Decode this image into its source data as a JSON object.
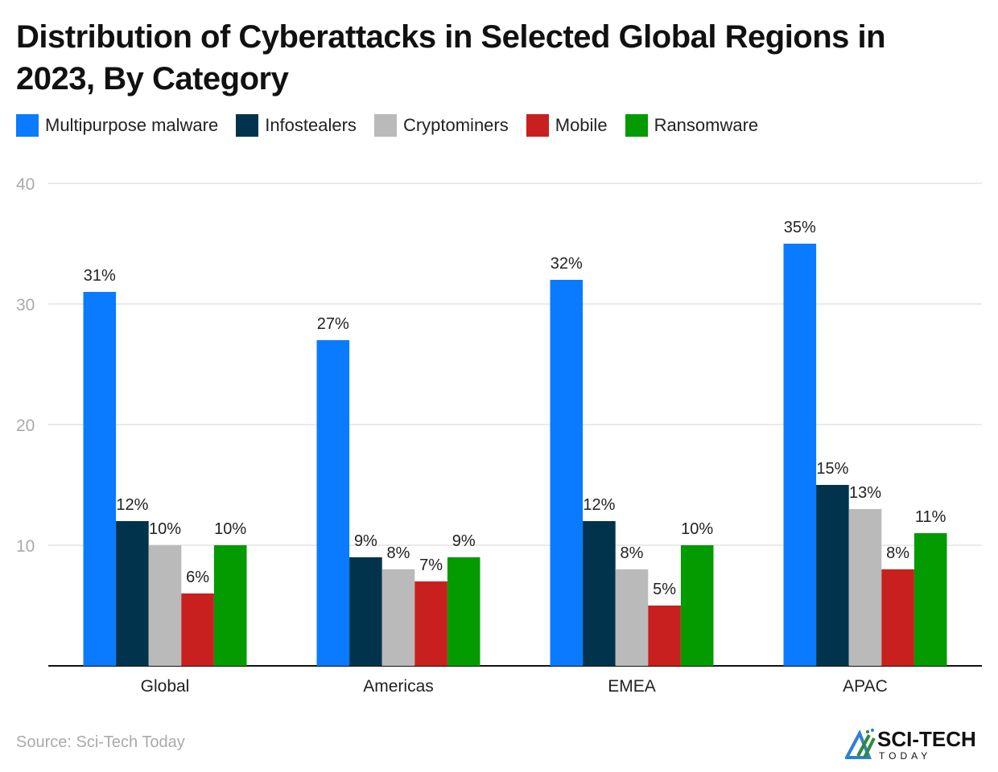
{
  "chart_data": {
    "type": "bar",
    "title": "Distribution of Cyberattacks in Selected Global Regions in 2023, By Category",
    "categories": [
      "Global",
      "Americas",
      "EMEA",
      "APAC"
    ],
    "series": [
      {
        "name": "Multipurpose malware",
        "color": "#0a7bff",
        "values": [
          31,
          27,
          32,
          35
        ]
      },
      {
        "name": "Infostealers",
        "color": "#01344c",
        "values": [
          12,
          9,
          12,
          15
        ]
      },
      {
        "name": "Cryptominers",
        "color": "#bababa",
        "values": [
          10,
          8,
          8,
          13
        ]
      },
      {
        "name": "Mobile",
        "color": "#c8201e",
        "values": [
          6,
          7,
          5,
          8
        ]
      },
      {
        "name": "Ransomware",
        "color": "#039b00",
        "values": [
          10,
          9,
          10,
          11
        ]
      }
    ],
    "value_suffix": "%",
    "yticks": [
      "10",
      "20",
      "30",
      "40"
    ],
    "ylim": [
      0,
      40
    ],
    "xlabel": "",
    "ylabel": "",
    "grid": true,
    "legend": "top-left"
  },
  "source": "Source: Sci-Tech Today",
  "logo": {
    "text": "SCI-TECH",
    "subtext": "TODAY"
  }
}
